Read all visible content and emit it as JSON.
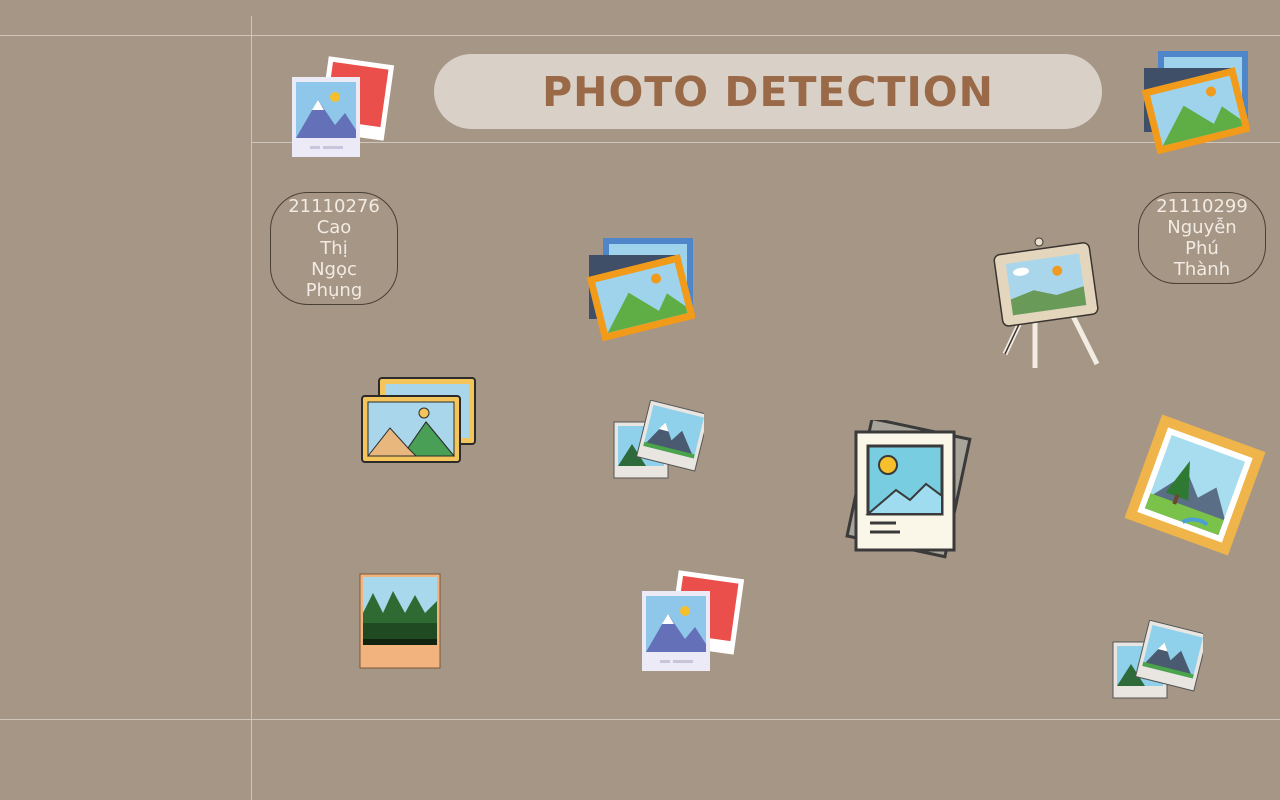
{
  "title": "PHOTO DETECTION",
  "students": [
    {
      "id": "21110276",
      "name_lines": [
        "Cao",
        "Thị",
        "Ngọc",
        "Phụng"
      ]
    },
    {
      "id": "21110299",
      "name_lines": [
        "Nguyễn",
        "Phú",
        "Thành"
      ]
    }
  ],
  "colors": {
    "background": "#a69686",
    "title_pill": "#d9d1c8",
    "title_text": "#9a6a48",
    "grid_line": "#cfc6bb"
  },
  "icons": [
    "polaroid-stack-icon",
    "framed-landscape-stack-icon",
    "easel-painting-icon",
    "gold-frame-landscape-icon",
    "photo-pair-icon",
    "document-photo-icon",
    "forest-polaroid-icon"
  ]
}
